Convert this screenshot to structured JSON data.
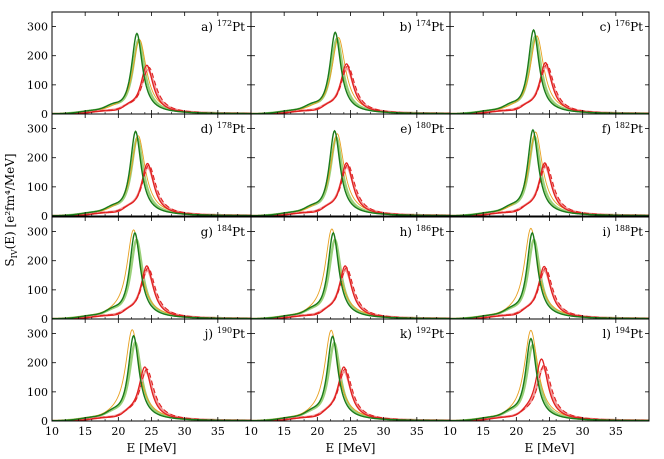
{
  "chart_data": {
    "type": "line",
    "layout": "4 rows x 3 columns, shared axes",
    "xlabel": "E [MeV]",
    "ylabel_main": "S",
    "ylabel_sub": "IV",
    "ylabel_rest": "(E) [e²fm⁴/MeV]",
    "xlim": [
      10,
      40
    ],
    "ylim": [
      0,
      350
    ],
    "xticks": [
      10,
      15,
      20,
      25,
      30,
      35
    ],
    "yticks": [
      0,
      100,
      200,
      300
    ],
    "grid": false,
    "colors": {
      "green": "#1a7a1a",
      "light_green": "#9ad07a",
      "orange": "#e8a020",
      "red": "#e02020",
      "pink": "#f29a9a"
    },
    "curves_note": "Per panel: solid dark green resonance, light green (faint) companion, thin orange curve, solid red and dashed red resonance.",
    "panels": [
      {
        "tag": "a)",
        "mass": "172",
        "elem": "Pt",
        "g_peak": [
          22.8,
          276
        ],
        "o_peak": [
          23.2,
          255
        ],
        "r_peak": [
          24.3,
          167
        ],
        "d_peak": [
          24.6,
          160
        ]
      },
      {
        "tag": "b)",
        "mass": "174",
        "elem": "Pt",
        "g_peak": [
          22.7,
          280
        ],
        "o_peak": [
          23.2,
          262
        ],
        "r_peak": [
          24.4,
          172
        ],
        "d_peak": [
          24.6,
          165
        ]
      },
      {
        "tag": "c)",
        "mass": "176",
        "elem": "Pt",
        "g_peak": [
          22.6,
          288
        ],
        "o_peak": [
          23.1,
          268
        ],
        "r_peak": [
          24.4,
          176
        ],
        "d_peak": [
          24.6,
          170
        ]
      },
      {
        "tag": "d)",
        "mass": "178",
        "elem": "Pt",
        "g_peak": [
          22.6,
          290
        ],
        "o_peak": [
          23.0,
          275
        ],
        "r_peak": [
          24.4,
          180
        ],
        "d_peak": [
          24.6,
          175
        ]
      },
      {
        "tag": "e)",
        "mass": "180",
        "elem": "Pt",
        "g_peak": [
          22.6,
          292
        ],
        "o_peak": [
          23.0,
          282
        ],
        "r_peak": [
          24.4,
          182
        ],
        "d_peak": [
          24.6,
          177
        ]
      },
      {
        "tag": "f)",
        "mass": "182",
        "elem": "Pt",
        "g_peak": [
          22.5,
          295
        ],
        "o_peak": [
          22.9,
          288
        ],
        "r_peak": [
          24.3,
          182
        ],
        "d_peak": [
          24.5,
          178
        ]
      },
      {
        "tag": "g)",
        "mass": "184",
        "elem": "Pt",
        "g_peak": [
          22.5,
          295
        ],
        "o_peak": [
          22.3,
          305
        ],
        "r_peak": [
          24.3,
          182
        ],
        "d_peak": [
          24.5,
          176
        ]
      },
      {
        "tag": "h)",
        "mass": "186",
        "elem": "Pt",
        "g_peak": [
          22.4,
          295
        ],
        "o_peak": [
          22.2,
          308
        ],
        "r_peak": [
          24.2,
          182
        ],
        "d_peak": [
          24.4,
          176
        ]
      },
      {
        "tag": "i)",
        "mass": "188",
        "elem": "Pt",
        "g_peak": [
          22.4,
          295
        ],
        "o_peak": [
          22.2,
          310
        ],
        "r_peak": [
          24.2,
          180
        ],
        "d_peak": [
          24.4,
          174
        ]
      },
      {
        "tag": "j)",
        "mass": "190",
        "elem": "Pt",
        "g_peak": [
          22.3,
          292
        ],
        "o_peak": [
          22.1,
          312
        ],
        "r_peak": [
          24.0,
          185
        ],
        "d_peak": [
          24.3,
          178
        ]
      },
      {
        "tag": "k)",
        "mass": "192",
        "elem": "Pt",
        "g_peak": [
          22.3,
          290
        ],
        "o_peak": [
          22.1,
          310
        ],
        "r_peak": [
          24.0,
          185
        ],
        "d_peak": [
          24.2,
          178
        ]
      },
      {
        "tag": "l)",
        "mass": "194",
        "elem": "Pt",
        "g_peak": [
          22.2,
          282
        ],
        "o_peak": [
          22.2,
          310
        ],
        "r_peak": [
          23.8,
          212
        ],
        "d_peak": [
          24.2,
          192
        ]
      }
    ]
  }
}
